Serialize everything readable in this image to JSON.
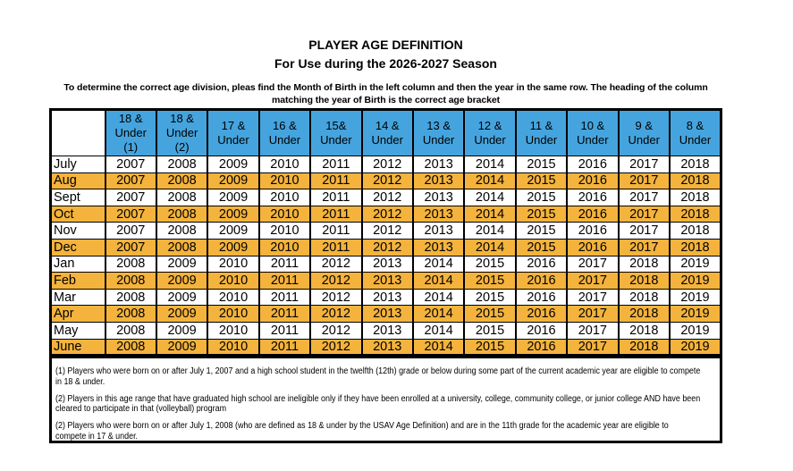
{
  "title": "PLAYER AGE DEFINITION",
  "subtitle": "For Use during the 2026-2027 Season",
  "instructions": "To determine the correct age division, pleas find the Month of Birth in the left column and then the year in the same row. The heading of the column\nmatching the year of Birth is the correct age bracket",
  "colors": {
    "header_blue": "#45A4DE",
    "row_orange": "#F4B33C"
  },
  "table": {
    "columns": [
      {
        "label": "18 &\nUnder\n(1)"
      },
      {
        "label": "18 &\nUnder\n(2)"
      },
      {
        "label": "17 &\nUnder"
      },
      {
        "label": "16 &\nUnder"
      },
      {
        "label": "15&\nUnder"
      },
      {
        "label": "14 &\nUnder"
      },
      {
        "label": "13 &\nUnder"
      },
      {
        "label": "12 &\nUnder"
      },
      {
        "label": "11 &\nUnder"
      },
      {
        "label": "10 &\nUnder"
      },
      {
        "label": "9 &\nUnder"
      },
      {
        "label": "8 &\nUnder"
      }
    ],
    "rows": [
      {
        "month": "July",
        "highlight": false,
        "years": [
          2007,
          2008,
          2009,
          2010,
          2011,
          2012,
          2013,
          2014,
          2015,
          2016,
          2017,
          2018
        ]
      },
      {
        "month": "Aug",
        "highlight": true,
        "years": [
          2007,
          2008,
          2009,
          2010,
          2011,
          2012,
          2013,
          2014,
          2015,
          2016,
          2017,
          2018
        ]
      },
      {
        "month": "Sept",
        "highlight": false,
        "years": [
          2007,
          2008,
          2009,
          2010,
          2011,
          2012,
          2013,
          2014,
          2015,
          2016,
          2017,
          2018
        ]
      },
      {
        "month": "Oct",
        "highlight": true,
        "years": [
          2007,
          2008,
          2009,
          2010,
          2011,
          2012,
          2013,
          2014,
          2015,
          2016,
          2017,
          2018
        ]
      },
      {
        "month": "Nov",
        "highlight": false,
        "years": [
          2007,
          2008,
          2009,
          2010,
          2011,
          2012,
          2013,
          2014,
          2015,
          2016,
          2017,
          2018
        ]
      },
      {
        "month": "Dec",
        "highlight": true,
        "years": [
          2007,
          2008,
          2009,
          2010,
          2011,
          2012,
          2013,
          2014,
          2015,
          2016,
          2017,
          2018
        ]
      },
      {
        "month": "Jan",
        "highlight": false,
        "years": [
          2008,
          2009,
          2010,
          2011,
          2012,
          2013,
          2014,
          2015,
          2016,
          2017,
          2018,
          2019
        ]
      },
      {
        "month": "Feb",
        "highlight": true,
        "years": [
          2008,
          2009,
          2010,
          2011,
          2012,
          2013,
          2014,
          2015,
          2016,
          2017,
          2018,
          2019
        ]
      },
      {
        "month": "Mar",
        "highlight": false,
        "years": [
          2008,
          2009,
          2010,
          2011,
          2012,
          2013,
          2014,
          2015,
          2016,
          2017,
          2018,
          2019
        ]
      },
      {
        "month": "Apr",
        "highlight": true,
        "years": [
          2008,
          2009,
          2010,
          2011,
          2012,
          2013,
          2014,
          2015,
          2016,
          2017,
          2018,
          2019
        ]
      },
      {
        "month": "May",
        "highlight": false,
        "years": [
          2008,
          2009,
          2010,
          2011,
          2012,
          2013,
          2014,
          2015,
          2016,
          2017,
          2018,
          2019
        ]
      },
      {
        "month": "June",
        "highlight": true,
        "years": [
          2008,
          2009,
          2010,
          2011,
          2012,
          2013,
          2014,
          2015,
          2016,
          2017,
          2018,
          2019
        ]
      }
    ]
  },
  "notes": [
    "(1) Players who were born on or after July 1, 2007 and a high school student in the twelfth (12th) grade or below during some part of the current academic year are eligible to compete\nin 18 & under.",
    "(2) Players in this age range that have graduated high school are ineligible only if they have been enrolled at a university, college, community college, or junior college AND have been\ncleared to participate in that (volleyball) program",
    "(2) Players who were born on or after July 1, 2008 (who are defined as 18 & under by the USAV Age Definition) and are in the 11th grade for the academic year are eligible to\ncompete in 17 & under."
  ]
}
